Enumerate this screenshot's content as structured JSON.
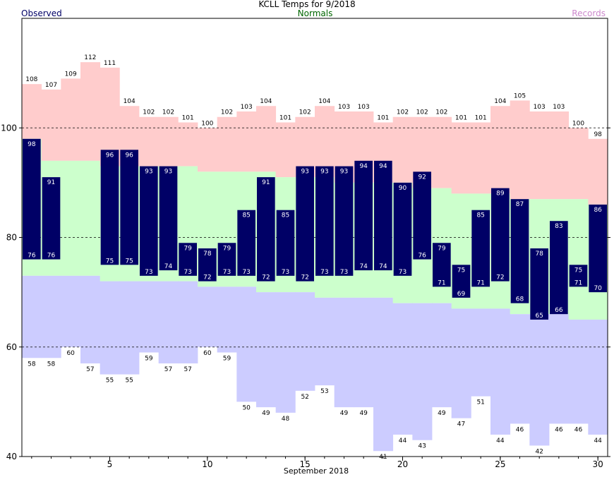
{
  "chart_data": {
    "type": "bar",
    "title": "KCLL Temps for 9/2018",
    "xlabel": "September 2018",
    "ylabel": "",
    "xlim": [
      0.5,
      30.5
    ],
    "ylim": [
      40,
      120
    ],
    "xticks": [
      5,
      10,
      15,
      20,
      25,
      30
    ],
    "yticks": [
      40,
      60,
      80,
      100
    ],
    "grid_dashed_y": [
      60,
      80,
      100
    ],
    "legend": [
      "Observed",
      "Normals",
      "Records"
    ],
    "colors": {
      "observed": "#000066",
      "observed_label": "#ffffff",
      "normal_band": "#ccffcc",
      "record_high_band": "#ffcccc",
      "record_low_band": "#ccccff",
      "normals_text": "#006600",
      "records_text": "#cc88cc",
      "observed_text": "#000066"
    },
    "days": [
      1,
      2,
      3,
      4,
      5,
      6,
      7,
      8,
      9,
      10,
      11,
      12,
      13,
      14,
      15,
      16,
      17,
      18,
      19,
      20,
      21,
      22,
      23,
      24,
      25,
      26,
      27,
      28,
      29,
      30
    ],
    "observed_high": [
      98,
      91,
      null,
      null,
      96,
      96,
      93,
      93,
      79,
      78,
      79,
      85,
      91,
      85,
      93,
      93,
      93,
      94,
      94,
      90,
      92,
      79,
      75,
      85,
      89,
      87,
      78,
      83,
      75,
      86
    ],
    "observed_low": [
      76,
      76,
      null,
      null,
      75,
      75,
      73,
      74,
      73,
      72,
      73,
      73,
      72,
      73,
      72,
      73,
      73,
      74,
      74,
      73,
      76,
      71,
      69,
      71,
      72,
      68,
      65,
      66,
      71,
      70
    ],
    "normal_high": [
      98,
      94,
      94,
      94,
      93,
      93,
      93,
      93,
      93,
      92,
      92,
      92,
      92,
      91,
      91,
      91,
      90,
      90,
      90,
      90,
      89,
      89,
      88,
      88,
      88,
      87,
      87,
      87,
      87,
      86
    ],
    "normal_low": [
      73,
      73,
      73,
      73,
      72,
      72,
      72,
      72,
      72,
      71,
      71,
      71,
      70,
      70,
      70,
      69,
      69,
      69,
      69,
      68,
      68,
      68,
      67,
      67,
      67,
      66,
      66,
      66,
      65,
      65
    ],
    "record_high": [
      108,
      107,
      109,
      112,
      111,
      104,
      102,
      102,
      101,
      100,
      102,
      103,
      104,
      101,
      102,
      104,
      103,
      103,
      101,
      102,
      102,
      102,
      101,
      101,
      104,
      105,
      103,
      103,
      100,
      98
    ],
    "record_low": [
      58,
      58,
      60,
      57,
      55,
      55,
      59,
      57,
      57,
      60,
      59,
      50,
      49,
      48,
      52,
      53,
      49,
      49,
      41,
      44,
      43,
      49,
      47,
      51,
      44,
      46,
      42,
      46,
      46,
      44
    ]
  }
}
